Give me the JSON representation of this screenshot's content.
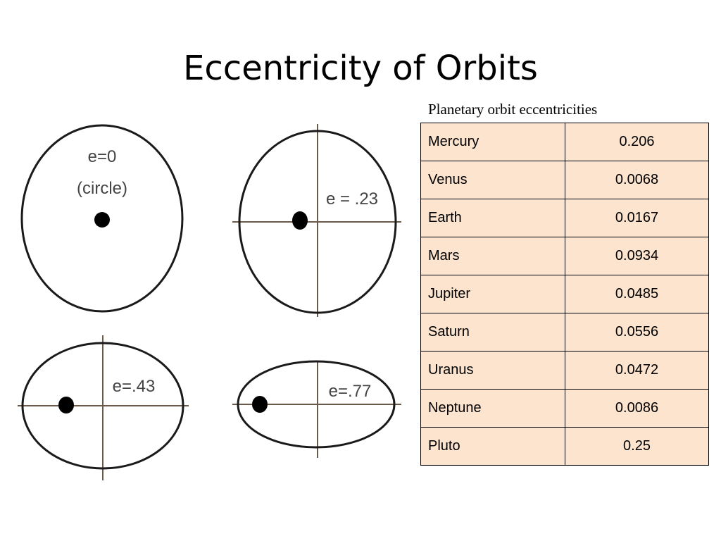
{
  "slide": {
    "title": "Eccentricity of Orbits"
  },
  "orbits": [
    {
      "label_line1": "e=0",
      "label_line2": "(circle)"
    },
    {
      "label": "e = .23"
    },
    {
      "label": "e=.43"
    },
    {
      "label": "e=.77"
    }
  ],
  "table": {
    "caption": "Planetary orbit eccentricities",
    "rows": [
      {
        "planet": "Mercury",
        "value": "0.206"
      },
      {
        "planet": "Venus",
        "value": "0.0068"
      },
      {
        "planet": "Earth",
        "value": "0.0167"
      },
      {
        "planet": "Mars",
        "value": "0.0934"
      },
      {
        "planet": "Jupiter",
        "value": "0.0485"
      },
      {
        "planet": "Saturn",
        "value": "0.0556"
      },
      {
        "planet": "Uranus",
        "value": "0.0472"
      },
      {
        "planet": "Neptune",
        "value": "0.0086"
      },
      {
        "planet": "Pluto",
        "value": "0.25"
      }
    ]
  },
  "colors": {
    "table_background": "#fde4cf",
    "orbit_stroke": "#1a1a1a",
    "axis_stroke": "#6b5a4a"
  }
}
